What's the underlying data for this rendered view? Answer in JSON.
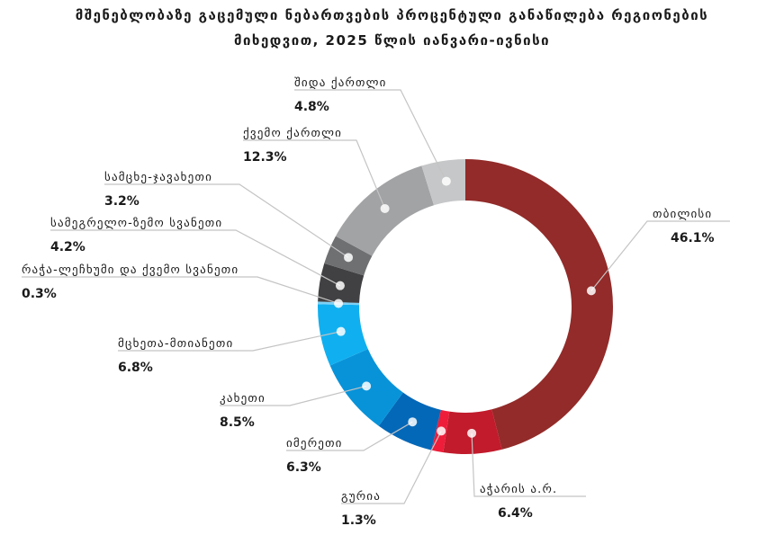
{
  "chart_data": {
    "type": "donut",
    "title_line1": "მშენებლობაზე გაცემული ნებართვების პროცენტული განაწილება რეგიონების",
    "title_line2": "მიხედვით, 2025 წლის იანვარი-ივნისი",
    "slices": [
      {
        "label": "თბილისი",
        "value": 46.1,
        "value_label": "46.1%",
        "color": "#922b29"
      },
      {
        "label": "აჭარის ა.რ.",
        "value": 6.4,
        "value_label": "6.4%",
        "color": "#c11b2c"
      },
      {
        "label": "გურია",
        "value": 1.3,
        "value_label": "1.3%",
        "color": "#ee1d3a"
      },
      {
        "label": "იმერეთი",
        "value": 6.3,
        "value_label": "6.3%",
        "color": "#0468b8"
      },
      {
        "label": "კახეთი",
        "value": 8.5,
        "value_label": "8.5%",
        "color": "#0893d9"
      },
      {
        "label": "მცხეთა-მთიანეთი",
        "value": 6.8,
        "value_label": "6.8%",
        "color": "#10b0f0"
      },
      {
        "label": "რაჭა-ლეჩხუმი და ქვემო სვანეთი",
        "value": 0.3,
        "value_label": "0.3%",
        "color": "#7fd1f5"
      },
      {
        "label": "სამეგრელო-ზემო სვანეთი",
        "value": 4.2,
        "value_label": "4.2%",
        "color": "#414143"
      },
      {
        "label": "სამცხე-ჯავახეთი",
        "value": 3.2,
        "value_label": "3.2%",
        "color": "#6f7072"
      },
      {
        "label": "ქვემო ქართლი",
        "value": 12.3,
        "value_label": "12.3%",
        "color": "#a2a3a5"
      },
      {
        "label": "შიდა ქართლი",
        "value": 4.8,
        "value_label": "4.8%",
        "color": "#c6c7c8"
      }
    ],
    "start_angle_deg": 0,
    "direction": "clockwise",
    "legend": "none",
    "labels": "outside-with-leader-lines"
  }
}
